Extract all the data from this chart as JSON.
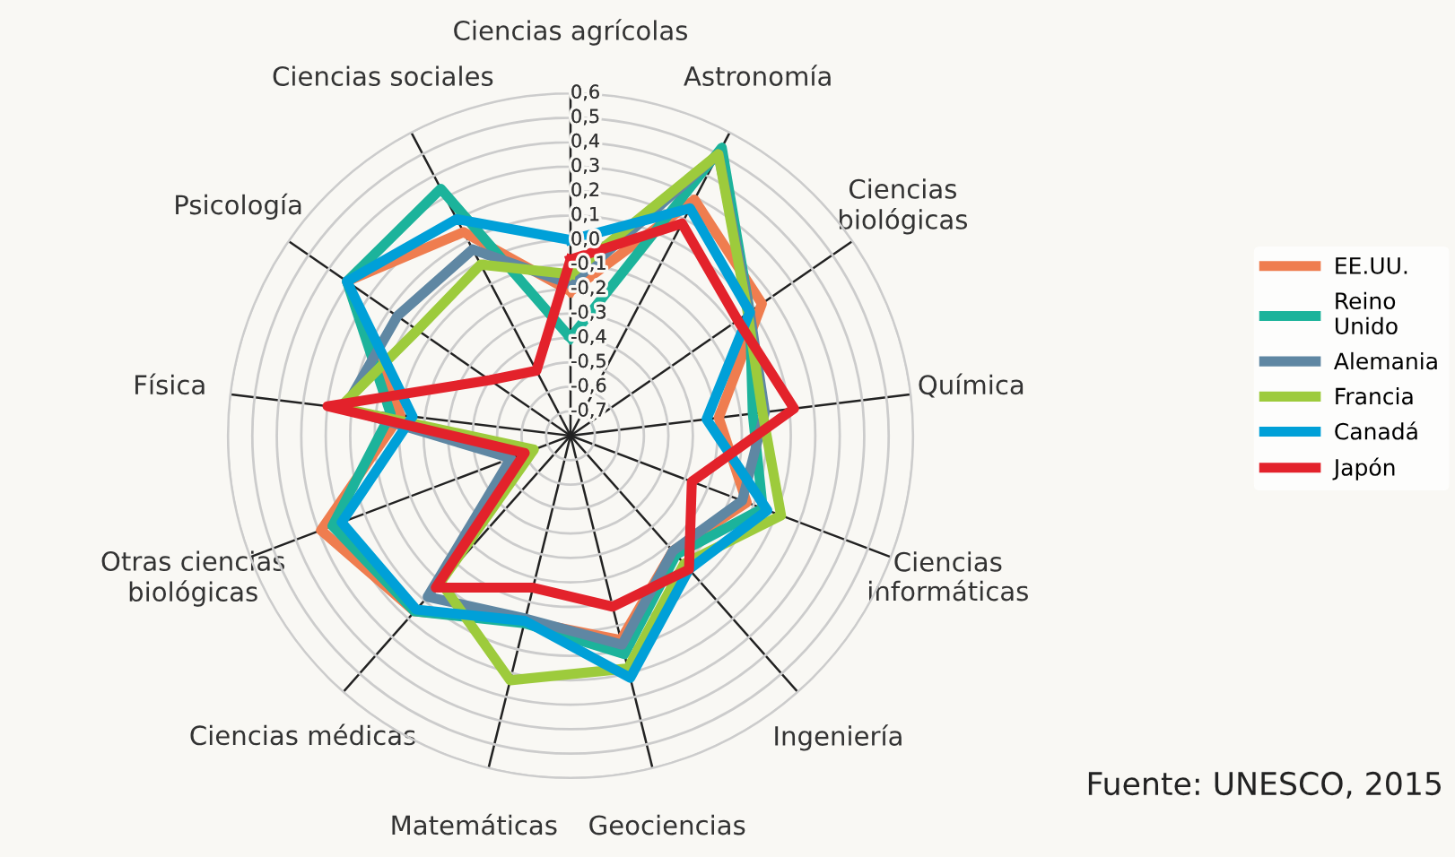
{
  "chart_data": {
    "type": "radar",
    "categories": [
      "Ciencias agrícolas",
      "Astronomía",
      "Ciencias\nbiológicas",
      "Química",
      "Ciencias\ninformáticas",
      "Ingeniería",
      "Geociencias",
      "Matemáticas",
      "Ciencias médicas",
      "Otras ciencias\nbiológicas",
      "Física",
      "Psicología",
      "Ciencias sociales"
    ],
    "series": [
      {
        "name": "EE.UU.",
        "color": "#ef7d4f",
        "values": [
          -0.21,
          0.29,
          0.15,
          -0.19,
          -0.03,
          -0.17,
          0.06,
          -0.02,
          0.16,
          0.29,
          -0.1,
          0.31,
          0.14
        ]
      },
      {
        "name": "Reino\nUnido",
        "color": "#1cb39b",
        "values": [
          -0.4,
          0.53,
          0.09,
          -0.05,
          0.04,
          -0.15,
          0.12,
          -0.01,
          0.16,
          0.24,
          -0.06,
          0.31,
          0.34
        ]
      },
      {
        "name": "Alemania",
        "color": "#5f87a3",
        "values": [
          -0.18,
          0.5,
          0.09,
          0.0,
          -0.05,
          -0.17,
          0.08,
          -0.03,
          0.08,
          -0.54,
          0.13,
          0.06,
          0.06
        ]
      },
      {
        "name": "Francia",
        "color": "#9dcb3c",
        "values": [
          -0.14,
          0.5,
          0.08,
          -0.01,
          0.12,
          -0.1,
          0.18,
          0.23,
          0.0,
          -0.64,
          0.15,
          -0.04,
          -0.01
        ]
      },
      {
        "name": "Canadá",
        "color": "#00a0d8",
        "values": [
          0.0,
          0.25,
          0.09,
          -0.24,
          0.06,
          -0.07,
          0.22,
          -0.02,
          0.15,
          0.2,
          -0.15,
          0.31,
          0.2
        ]
      },
      {
        "name": "Japón",
        "color": "#e3222b",
        "values": [
          -0.08,
          0.18,
          0.03,
          0.12,
          -0.27,
          -0.07,
          -0.08,
          -0.16,
          0.03,
          -0.6,
          0.2,
          -0.4,
          -0.5
        ]
      }
    ],
    "ylim": [
      -0.8,
      0.6
    ],
    "yticks": [
      {
        "value": 0.6,
        "label": "0,6"
      },
      {
        "value": 0.5,
        "label": "0,5"
      },
      {
        "value": 0.4,
        "label": "0,4"
      },
      {
        "value": 0.3,
        "label": "0,3"
      },
      {
        "value": 0.2,
        "label": "0,2"
      },
      {
        "value": 0.1,
        "label": "0,1"
      },
      {
        "value": 0.0,
        "label": "0,0"
      },
      {
        "value": -0.1,
        "label": "-0,1"
      },
      {
        "value": -0.2,
        "label": "-0,2"
      },
      {
        "value": -0.3,
        "label": "-0,3"
      },
      {
        "value": -0.4,
        "label": "-0,4"
      },
      {
        "value": -0.5,
        "label": "-0,5"
      },
      {
        "value": -0.6,
        "label": "-0,6"
      },
      {
        "value": -0.7,
        "label": "-0,7"
      }
    ],
    "grid": true,
    "legend": "right",
    "annotations": [
      "Fuente: UNESCO, 2015"
    ]
  }
}
